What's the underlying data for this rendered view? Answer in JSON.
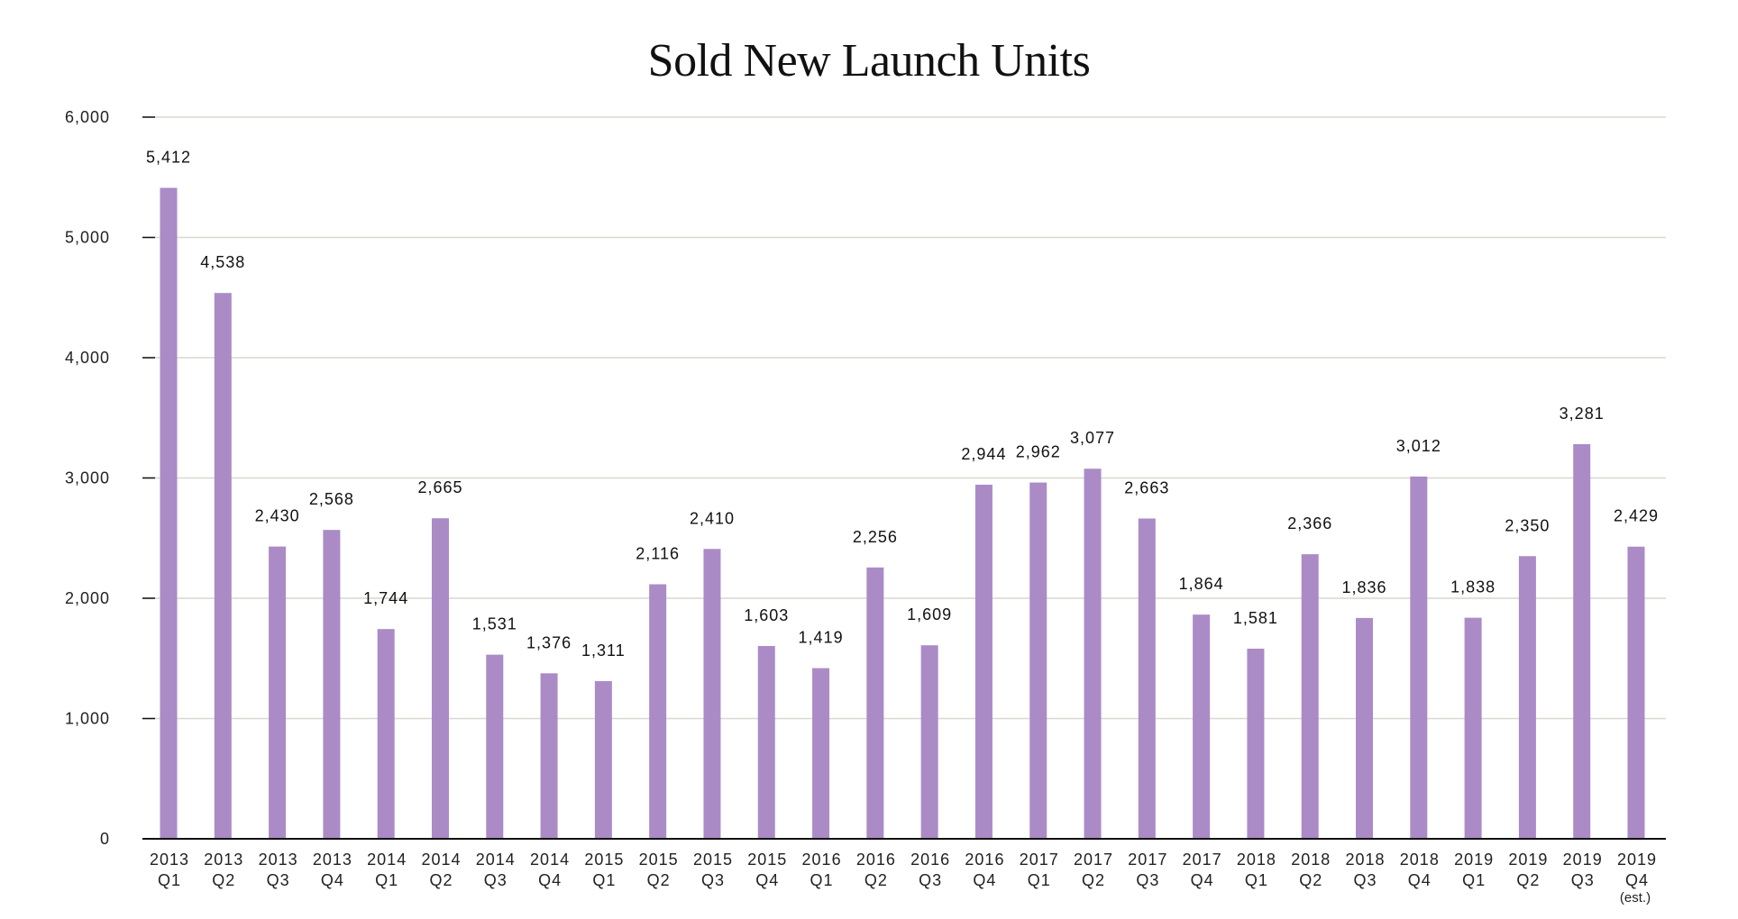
{
  "chart_data": {
    "type": "bar",
    "title": "Sold New Launch Units",
    "xlabel": "",
    "ylabel": "",
    "ylim": [
      0,
      6000
    ],
    "yticks": [
      "0",
      "1,000",
      "2,000",
      "3,000",
      "4,000",
      "5,000",
      "6,000"
    ],
    "ytick_values": [
      0,
      1000,
      2000,
      3000,
      4000,
      5000,
      6000
    ],
    "grid": true,
    "legend": "none",
    "bar_color": "#ab8bc6",
    "categories": [
      {
        "year": "2013",
        "quarter": "Q1"
      },
      {
        "year": "2013",
        "quarter": "Q2"
      },
      {
        "year": "2013",
        "quarter": "Q3"
      },
      {
        "year": "2013",
        "quarter": "Q4"
      },
      {
        "year": "2014",
        "quarter": "Q1"
      },
      {
        "year": "2014",
        "quarter": "Q2"
      },
      {
        "year": "2014",
        "quarter": "Q3"
      },
      {
        "year": "2014",
        "quarter": "Q4"
      },
      {
        "year": "2015",
        "quarter": "Q1"
      },
      {
        "year": "2015",
        "quarter": "Q2"
      },
      {
        "year": "2015",
        "quarter": "Q3"
      },
      {
        "year": "2015",
        "quarter": "Q4"
      },
      {
        "year": "2016",
        "quarter": "Q1"
      },
      {
        "year": "2016",
        "quarter": "Q2"
      },
      {
        "year": "2016",
        "quarter": "Q3"
      },
      {
        "year": "2016",
        "quarter": "Q4"
      },
      {
        "year": "2017",
        "quarter": "Q1"
      },
      {
        "year": "2017",
        "quarter": "Q2"
      },
      {
        "year": "2017",
        "quarter": "Q3"
      },
      {
        "year": "2017",
        "quarter": "Q4"
      },
      {
        "year": "2018",
        "quarter": "Q1"
      },
      {
        "year": "2018",
        "quarter": "Q2"
      },
      {
        "year": "2018",
        "quarter": "Q3"
      },
      {
        "year": "2018",
        "quarter": "Q4"
      },
      {
        "year": "2019",
        "quarter": "Q1"
      },
      {
        "year": "2019",
        "quarter": "Q2"
      },
      {
        "year": "2019",
        "quarter": "Q3"
      },
      {
        "year": "2019",
        "quarter": "Q4",
        "note": "(est.)"
      }
    ],
    "values": [
      5412,
      4538,
      2430,
      2568,
      1744,
      2665,
      1531,
      1376,
      1311,
      2116,
      2410,
      1603,
      1419,
      2256,
      1609,
      2944,
      2962,
      3077,
      2663,
      1864,
      1581,
      2366,
      1836,
      3012,
      1838,
      2350,
      3281,
      2429
    ],
    "data_labels": [
      "5,412",
      "4,538",
      "2,430",
      "2,568",
      "1,744",
      "2,665",
      "1,531",
      "1,376",
      "1,311",
      "2,116",
      "2,410",
      "1,603",
      "1,419",
      "2,256",
      "1,609",
      "2,944",
      "2,962",
      "3,077",
      "2,663",
      "1,864",
      "1,581",
      "2,366",
      "1,836",
      "3,012",
      "1,838",
      "2,350",
      "3,281",
      "2,429"
    ]
  }
}
